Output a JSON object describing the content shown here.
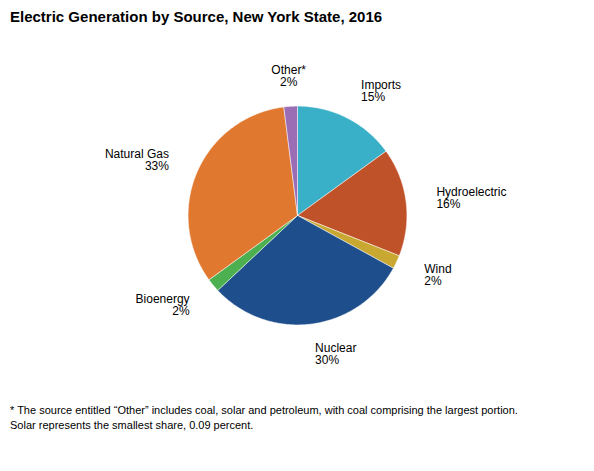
{
  "chart_data": {
    "type": "pie",
    "title": "Electric Generation by Source, New York State, 2016",
    "categories": [
      "Imports",
      "Hydroelectric",
      "Wind",
      "Nuclear",
      "Bioenergy",
      "Natural Gas",
      "Other*"
    ],
    "values": [
      15,
      16,
      2,
      30,
      2,
      33,
      2
    ],
    "value_labels": [
      "15%",
      "16%",
      "2%",
      "30%",
      "2%",
      "33%",
      "2%"
    ],
    "colors": [
      "#3ab0c8",
      "#c0522a",
      "#c8a830",
      "#1f4e8c",
      "#4caf50",
      "#e07830",
      "#9b6db5"
    ],
    "data_labels": true,
    "footnote": "* The source entitled “Other” includes coal, solar and petroleum, with coal comprising the largest portion.\nSolar represents the smallest share, 0.09 percent."
  }
}
